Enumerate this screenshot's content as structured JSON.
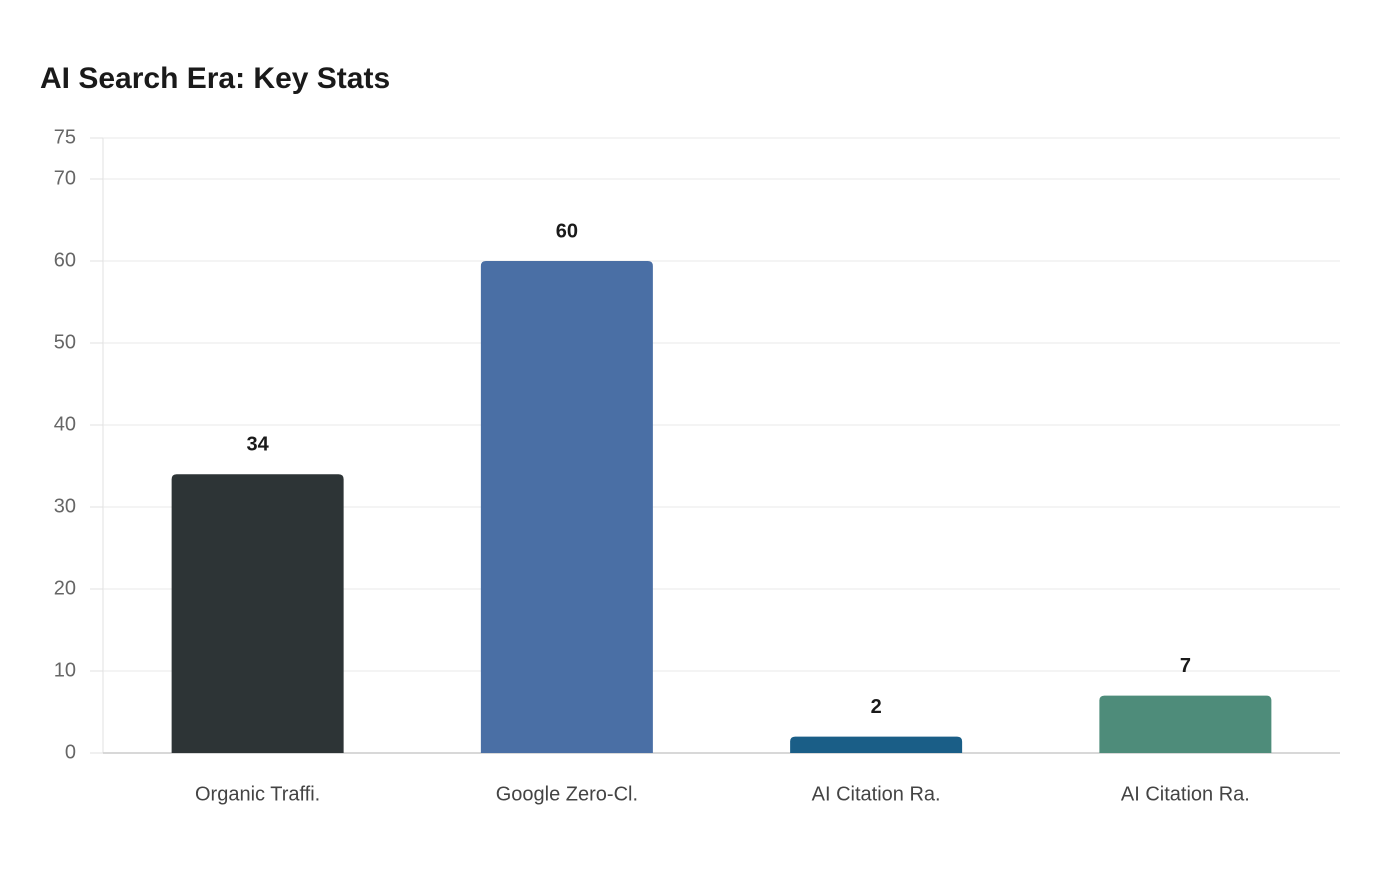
{
  "chart_data": {
    "type": "bar",
    "title": "AI Search Era: Key Stats",
    "categories": [
      "Organic Traffi.",
      "Google Zero-Cl.",
      "AI Citation Ra.",
      "AI Citation Ra."
    ],
    "values": [
      34,
      60,
      2,
      7
    ],
    "colors": [
      "#2d3436",
      "#4a6fa5",
      "#1a5e87",
      "#4e8c7a"
    ],
    "ylim": [
      0,
      75
    ],
    "yticks": [
      0,
      10,
      20,
      30,
      40,
      50,
      60,
      70,
      75
    ],
    "grid": true
  }
}
